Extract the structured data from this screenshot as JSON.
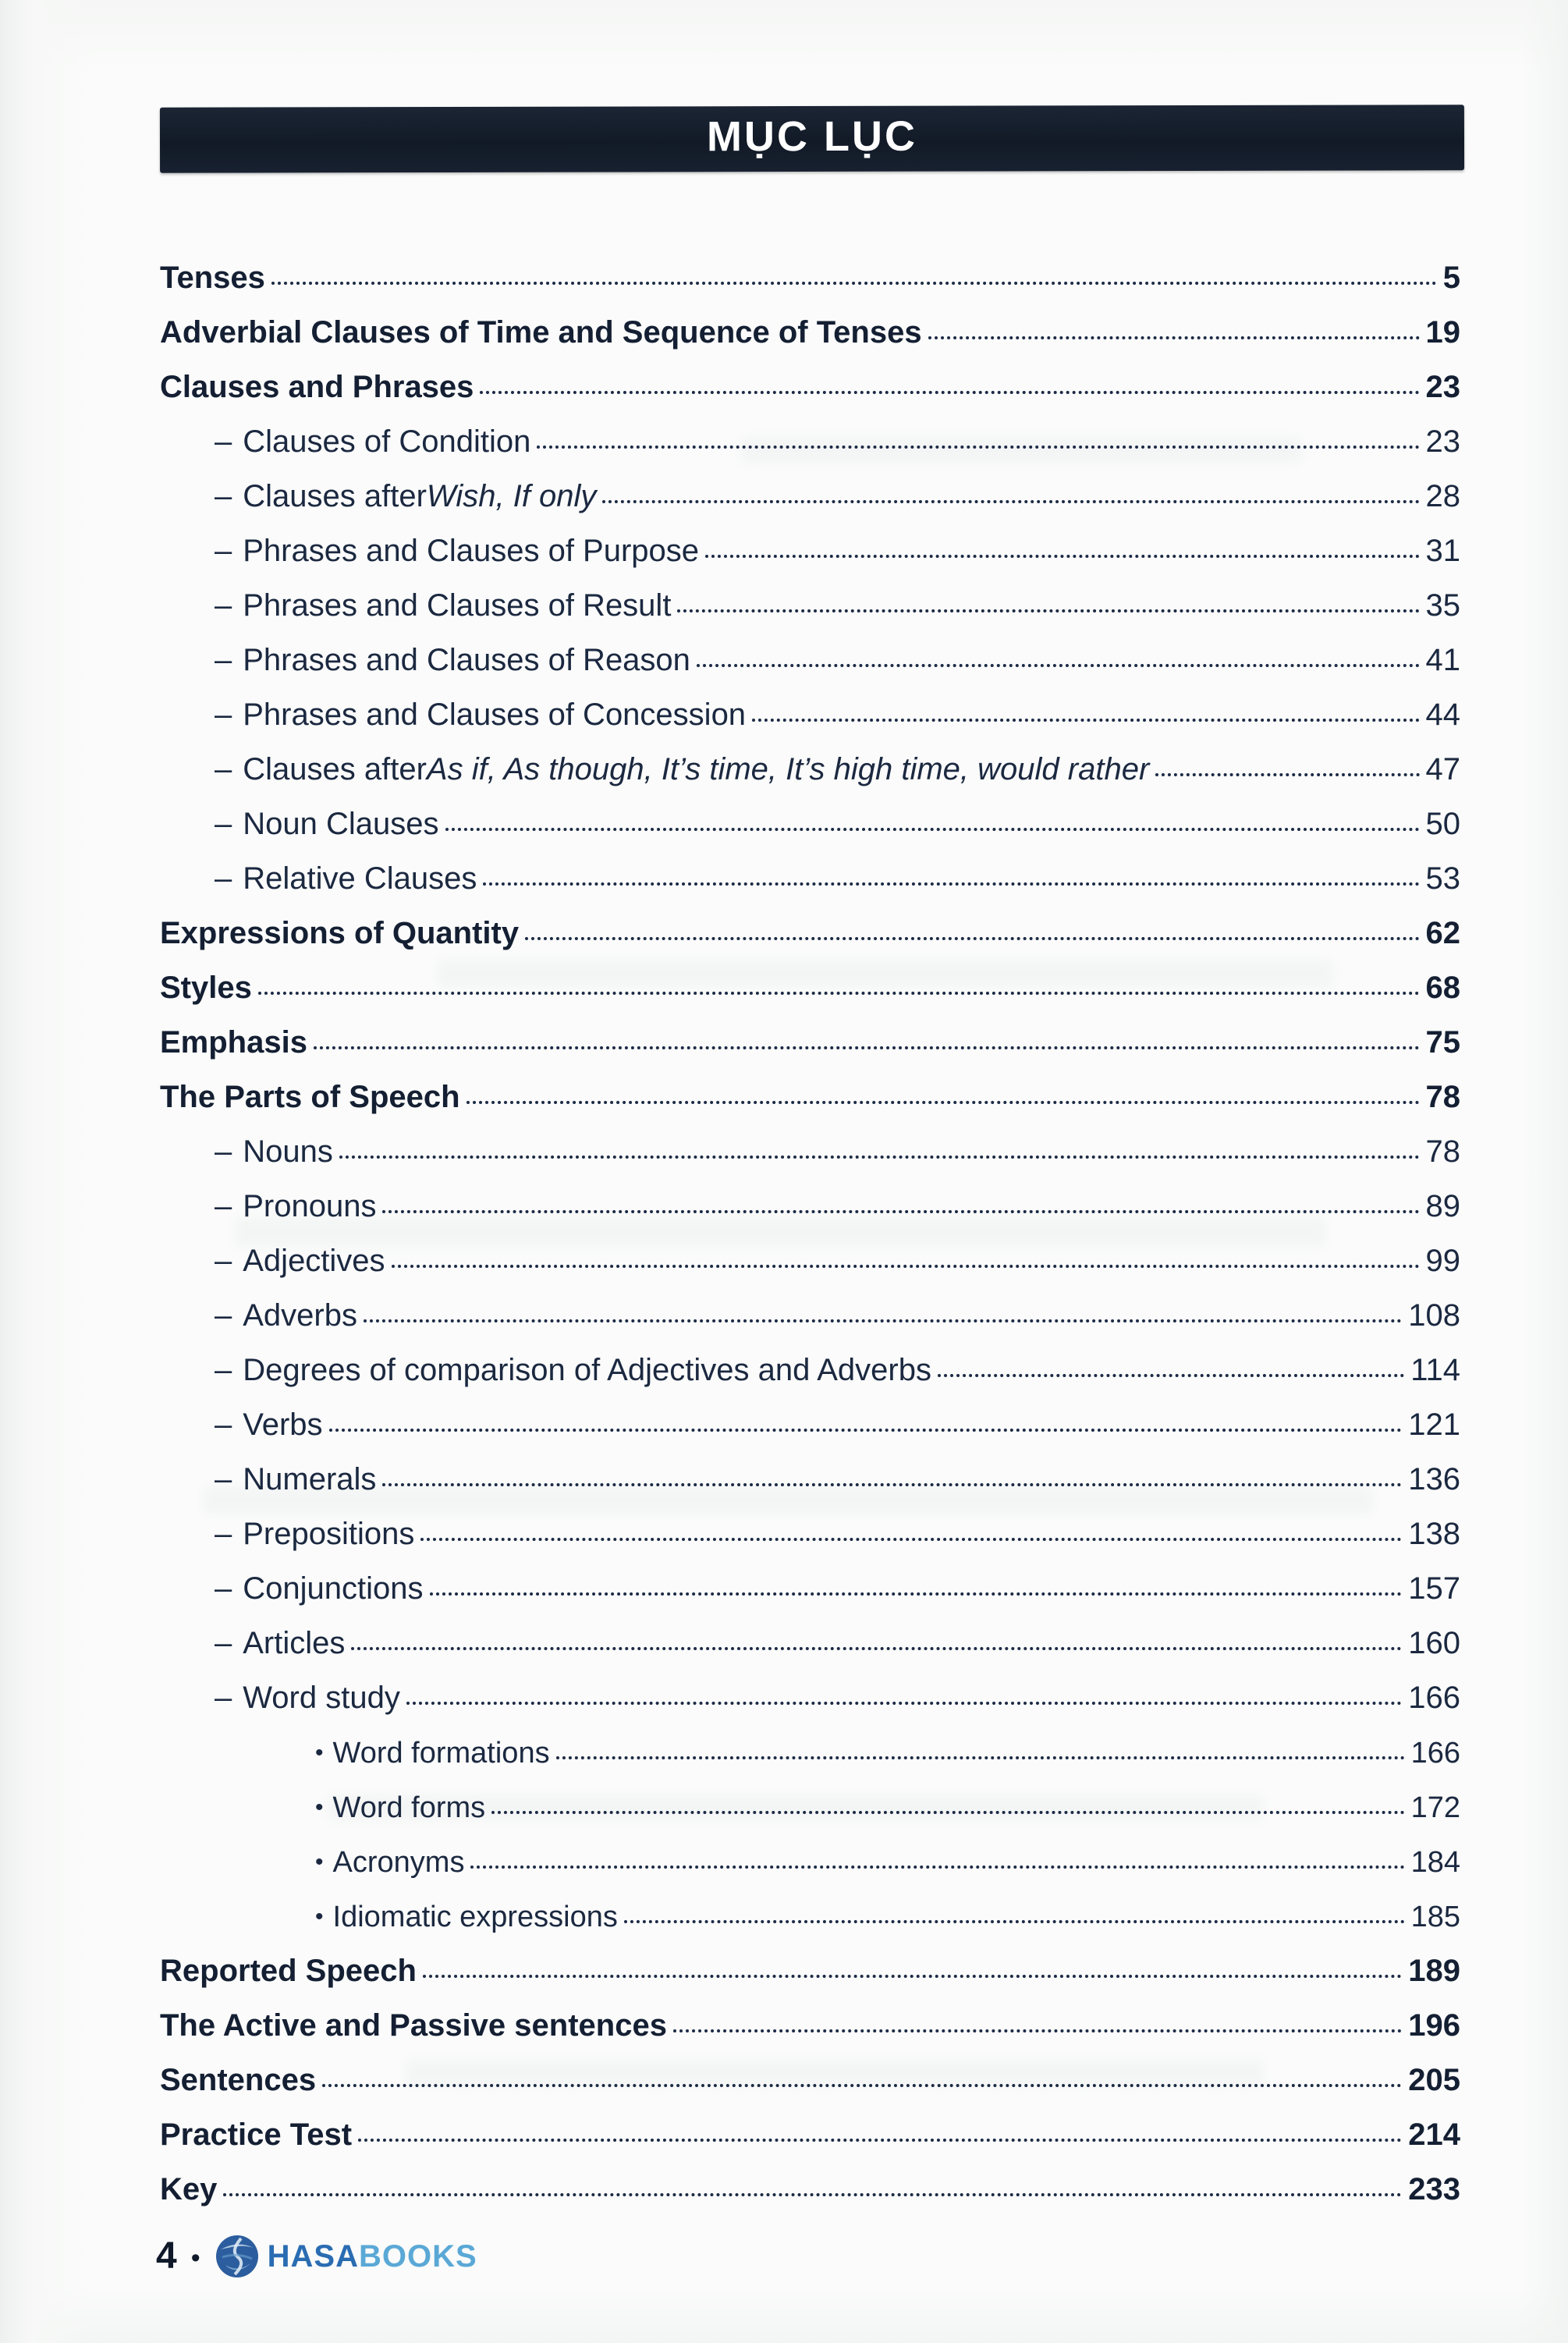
{
  "header": {
    "title": "MỤC LỤC"
  },
  "toc": {
    "sub_marker": "–",
    "subsub_marker": "•",
    "entries": [
      {
        "level": "top",
        "parts": [
          {
            "t": "Tenses"
          }
        ],
        "page": "5"
      },
      {
        "level": "top",
        "parts": [
          {
            "t": "Adverbial Clauses of Time and Sequence of Tenses"
          }
        ],
        "page": "19"
      },
      {
        "level": "top",
        "parts": [
          {
            "t": "Clauses and Phrases"
          }
        ],
        "page": "23"
      },
      {
        "level": "sub",
        "parts": [
          {
            "t": "Clauses of Condition"
          }
        ],
        "page": "23"
      },
      {
        "level": "sub",
        "parts": [
          {
            "t": "Clauses after "
          },
          {
            "t": "Wish, If only",
            "italic": true
          }
        ],
        "page": "28"
      },
      {
        "level": "sub",
        "parts": [
          {
            "t": "Phrases and Clauses of Purpose"
          }
        ],
        "page": "31"
      },
      {
        "level": "sub",
        "parts": [
          {
            "t": "Phrases and Clauses of Result"
          }
        ],
        "page": "35"
      },
      {
        "level": "sub",
        "parts": [
          {
            "t": "Phrases and Clauses of Reason"
          }
        ],
        "page": "41"
      },
      {
        "level": "sub",
        "parts": [
          {
            "t": "Phrases and Clauses of Concession"
          }
        ],
        "page": "44"
      },
      {
        "level": "sub",
        "parts": [
          {
            "t": "Clauses after "
          },
          {
            "t": "As if, As though, It’s time, It’s high time, would rather",
            "italic": true
          }
        ],
        "page": "47"
      },
      {
        "level": "sub",
        "parts": [
          {
            "t": "Noun Clauses"
          }
        ],
        "page": "50"
      },
      {
        "level": "sub",
        "parts": [
          {
            "t": "Relative Clauses"
          }
        ],
        "page": "53"
      },
      {
        "level": "top",
        "parts": [
          {
            "t": "Expressions of Quantity"
          }
        ],
        "page": "62"
      },
      {
        "level": "top",
        "parts": [
          {
            "t": "Styles"
          }
        ],
        "page": "68"
      },
      {
        "level": "top",
        "parts": [
          {
            "t": "Emphasis"
          }
        ],
        "page": "75"
      },
      {
        "level": "top",
        "parts": [
          {
            "t": "The Parts of Speech"
          }
        ],
        "page": "78"
      },
      {
        "level": "sub",
        "parts": [
          {
            "t": "Nouns"
          }
        ],
        "page": "78"
      },
      {
        "level": "sub",
        "parts": [
          {
            "t": "Pronouns"
          }
        ],
        "page": "89"
      },
      {
        "level": "sub",
        "parts": [
          {
            "t": "Adjectives"
          }
        ],
        "page": "99"
      },
      {
        "level": "sub",
        "parts": [
          {
            "t": "Adverbs"
          }
        ],
        "page": "108"
      },
      {
        "level": "sub",
        "parts": [
          {
            "t": "Degrees of comparison of Adjectives and Adverbs"
          }
        ],
        "page": "114"
      },
      {
        "level": "sub",
        "parts": [
          {
            "t": "Verbs"
          }
        ],
        "page": "121"
      },
      {
        "level": "sub",
        "parts": [
          {
            "t": "Numerals"
          }
        ],
        "page": "136"
      },
      {
        "level": "sub",
        "parts": [
          {
            "t": "Prepositions"
          }
        ],
        "page": "138"
      },
      {
        "level": "sub",
        "parts": [
          {
            "t": "Conjunctions"
          }
        ],
        "page": "157"
      },
      {
        "level": "sub",
        "parts": [
          {
            "t": "Articles"
          }
        ],
        "page": "160"
      },
      {
        "level": "sub",
        "parts": [
          {
            "t": "Word study"
          }
        ],
        "page": "166"
      },
      {
        "level": "subsub",
        "parts": [
          {
            "t": "Word formations"
          }
        ],
        "page": "166"
      },
      {
        "level": "subsub",
        "parts": [
          {
            "t": "Word forms"
          }
        ],
        "page": "172"
      },
      {
        "level": "subsub",
        "parts": [
          {
            "t": "Acronyms"
          }
        ],
        "page": "184"
      },
      {
        "level": "subsub",
        "parts": [
          {
            "t": "Idiomatic expressions"
          }
        ],
        "page": "185"
      },
      {
        "level": "top",
        "parts": [
          {
            "t": "Reported Speech"
          }
        ],
        "page": "189"
      },
      {
        "level": "top",
        "parts": [
          {
            "t": "The Active and Passive sentences"
          }
        ],
        "page": "196"
      },
      {
        "level": "top",
        "parts": [
          {
            "t": "Sentences"
          }
        ],
        "page": "205"
      },
      {
        "level": "top",
        "parts": [
          {
            "t": "Practice Test"
          }
        ],
        "page": "214"
      },
      {
        "level": "top",
        "parts": [
          {
            "t": "Key"
          }
        ],
        "page": "233"
      }
    ]
  },
  "footer": {
    "page_number": "4",
    "separator": "•",
    "brand_hasa": "HASA",
    "brand_books": "BOOKS"
  },
  "colors": {
    "ink": "#1b2840",
    "header_bg": "#141d2b",
    "brand_dark_blue": "#2a6cb2",
    "brand_light_blue": "#5aa8d6",
    "logo_blue": "#2c5d9e"
  }
}
